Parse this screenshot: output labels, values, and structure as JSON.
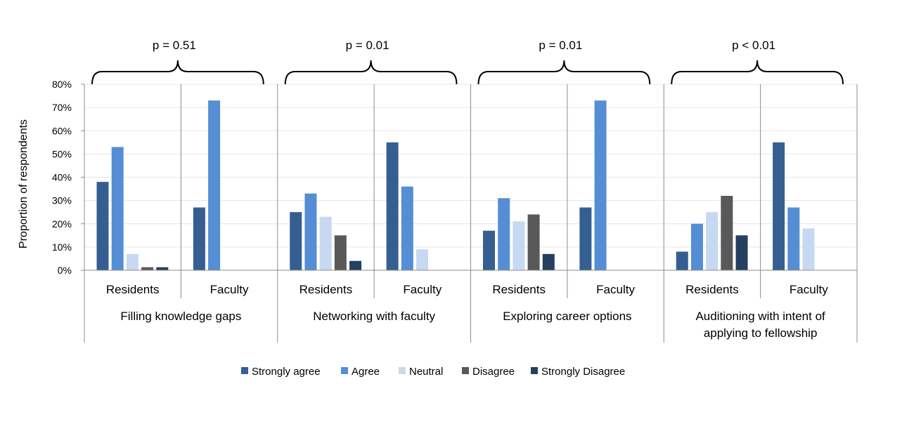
{
  "chart_data": {
    "type": "bar",
    "ylabel": "Proportion of respondents",
    "ylim": [
      0,
      80
    ],
    "y_ticks": [
      "0%",
      "10%",
      "20%",
      "30%",
      "40%",
      "50%",
      "60%",
      "70%",
      "80%"
    ],
    "grid": true,
    "legend_position": "bottom",
    "series": [
      {
        "name": "Strongly agree",
        "color": "#355F91"
      },
      {
        "name": "Agree",
        "color": "#558ED5"
      },
      {
        "name": "Neutral",
        "color": "#C6D9F1"
      },
      {
        "name": "Disagree",
        "color": "#595959"
      },
      {
        "name": "Strongly Disagree",
        "color": "#243F60"
      }
    ],
    "groups": [
      {
        "label": "Filling knowledge gaps",
        "p_value": "p = 0.51",
        "subgroups": [
          {
            "label": "Residents",
            "values": [
              38,
              53,
              7,
              1.3,
              1.3
            ]
          },
          {
            "label": "Faculty",
            "values": [
              27,
              73,
              0,
              0,
              0
            ]
          }
        ]
      },
      {
        "label": "Networking with faculty",
        "p_value": "p = 0.01",
        "subgroups": [
          {
            "label": "Residents",
            "values": [
              25,
              33,
              23,
              15,
              4
            ]
          },
          {
            "label": "Faculty",
            "values": [
              55,
              36,
              9,
              0,
              0
            ]
          }
        ]
      },
      {
        "label": "Exploring career options",
        "p_value": "p = 0.01",
        "subgroups": [
          {
            "label": "Residents",
            "values": [
              17,
              31,
              21,
              24,
              7
            ]
          },
          {
            "label": "Faculty",
            "values": [
              27,
              73,
              0,
              0,
              0
            ]
          }
        ]
      },
      {
        "label": [
          "Auditioning with intent of",
          "applying to fellowship"
        ],
        "p_value": "p < 0.01",
        "subgroups": [
          {
            "label": "Residents",
            "values": [
              8,
              20,
              25,
              32,
              15
            ]
          },
          {
            "label": "Faculty",
            "values": [
              55,
              27,
              18,
              0,
              0
            ]
          }
        ]
      }
    ]
  }
}
